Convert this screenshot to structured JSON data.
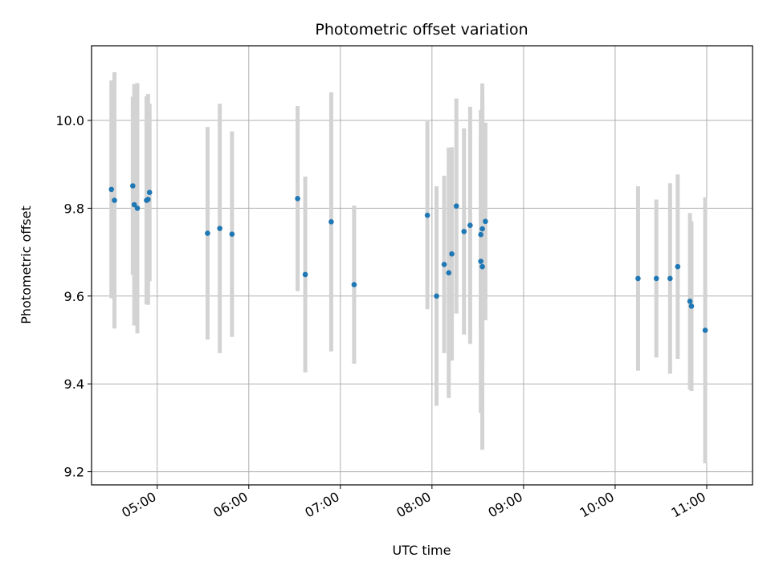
{
  "chart_data": {
    "type": "scatter",
    "title": "Photometric offset variation",
    "xlabel": "UTC time",
    "ylabel": "Photometric offset",
    "x_axis_type": "time",
    "xlim": [
      "04:17",
      "11:30"
    ],
    "ylim": [
      9.17,
      10.17
    ],
    "grid": true,
    "x_ticks": [
      "05:00",
      "06:00",
      "07:00",
      "08:00",
      "09:00",
      "10:00",
      "11:00"
    ],
    "y_ticks": [
      9.2,
      9.4,
      9.6,
      9.8,
      10.0
    ],
    "y_tick_labels": [
      "9.2",
      "9.4",
      "9.6",
      "9.8",
      "10.0"
    ],
    "point_color": "#1f77b4",
    "errorbar_color": "#d3d3d3",
    "points": [
      {
        "time": "04:30",
        "y": 9.843,
        "err": 0.248
      },
      {
        "time": "04:32",
        "y": 9.818,
        "err": 0.292
      },
      {
        "time": "04:44",
        "y": 9.851,
        "err": 0.203
      },
      {
        "time": "04:45",
        "y": 9.808,
        "err": 0.275
      },
      {
        "time": "04:47",
        "y": 9.8,
        "err": 0.285
      },
      {
        "time": "04:53",
        "y": 9.818,
        "err": 0.237
      },
      {
        "time": "04:54",
        "y": 9.82,
        "err": 0.24
      },
      {
        "time": "04:55",
        "y": 9.836,
        "err": 0.202
      },
      {
        "time": "05:33",
        "y": 9.743,
        "err": 0.242
      },
      {
        "time": "05:41",
        "y": 9.754,
        "err": 0.284
      },
      {
        "time": "05:49",
        "y": 9.741,
        "err": 0.234
      },
      {
        "time": "06:32",
        "y": 9.822,
        "err": 0.211
      },
      {
        "time": "06:37",
        "y": 9.649,
        "err": 0.223
      },
      {
        "time": "06:54",
        "y": 9.769,
        "err": 0.295
      },
      {
        "time": "07:09",
        "y": 9.626,
        "err": 0.18
      },
      {
        "time": "07:57",
        "y": 9.784,
        "err": 0.214
      },
      {
        "time": "08:03",
        "y": 9.6,
        "err": 0.25
      },
      {
        "time": "08:08",
        "y": 9.672,
        "err": 0.202
      },
      {
        "time": "08:11",
        "y": 9.653,
        "err": 0.285
      },
      {
        "time": "08:13",
        "y": 9.696,
        "err": 0.243
      },
      {
        "time": "08:16",
        "y": 9.805,
        "err": 0.245
      },
      {
        "time": "08:21",
        "y": 9.747,
        "err": 0.235
      },
      {
        "time": "08:25",
        "y": 9.761,
        "err": 0.27
      },
      {
        "time": "08:32",
        "y": 9.679,
        "err": 0.345
      },
      {
        "time": "08:32",
        "y": 9.74,
        "err": 0.22
      },
      {
        "time": "08:33",
        "y": 9.667,
        "err": 0.417
      },
      {
        "time": "08:33",
        "y": 9.753,
        "err": 0.3
      },
      {
        "time": "08:35",
        "y": 9.77,
        "err": 0.225
      },
      {
        "time": "10:15",
        "y": 9.64,
        "err": 0.21
      },
      {
        "time": "10:27",
        "y": 9.64,
        "err": 0.18
      },
      {
        "time": "10:36",
        "y": 9.64,
        "err": 0.217
      },
      {
        "time": "10:41",
        "y": 9.667,
        "err": 0.21
      },
      {
        "time": "10:49",
        "y": 9.588,
        "err": 0.201
      },
      {
        "time": "10:50",
        "y": 9.577,
        "err": 0.193
      },
      {
        "time": "10:59",
        "y": 9.522,
        "err": 0.303
      }
    ]
  }
}
